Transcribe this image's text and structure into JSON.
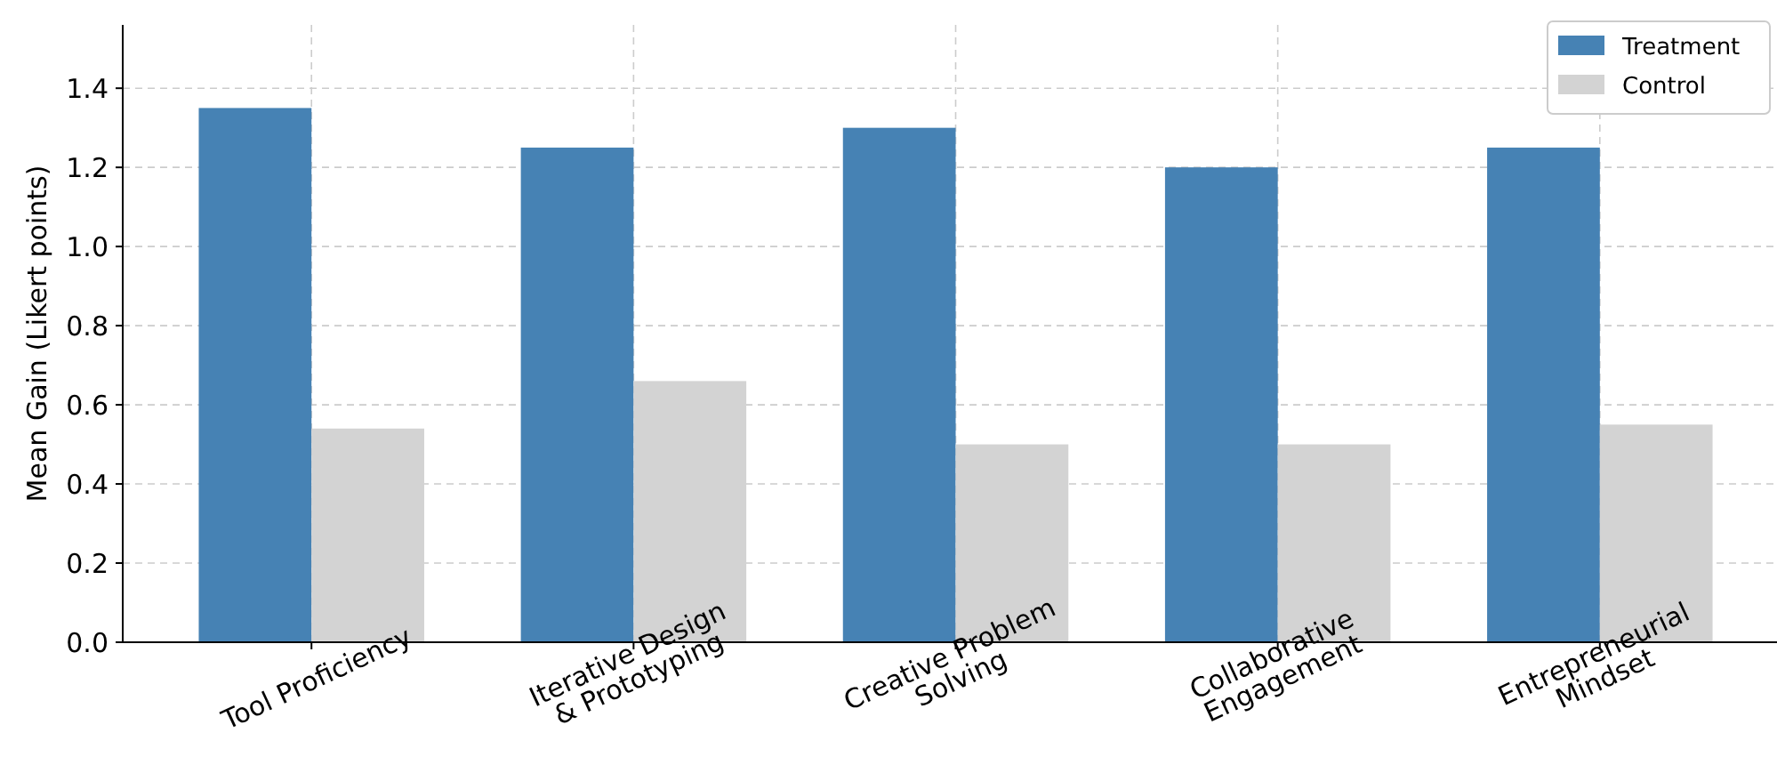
{
  "chart_data": {
    "type": "bar",
    "ylabel": "Mean Gain (Likert points)",
    "categories": [
      "Tool Proficiency",
      "Iterative Design\n& Prototyping",
      "Creative Problem\nSolving",
      "Collaborative\nEngagement",
      "Entrepreneurial\nMindset"
    ],
    "series": [
      {
        "name": "Treatment",
        "color": "#4682b4",
        "values": [
          1.35,
          1.25,
          1.3,
          1.2,
          1.25
        ]
      },
      {
        "name": "Control",
        "color": "#d3d3d3",
        "values": [
          0.54,
          0.66,
          0.5,
          0.5,
          0.55
        ]
      }
    ],
    "ylim": [
      0,
      1.56
    ],
    "yticks": [
      {
        "value": 0,
        "label": "0.0"
      },
      {
        "value": 0.2,
        "label": "0.2"
      },
      {
        "value": 0.4,
        "label": "0.4"
      },
      {
        "value": 0.6,
        "label": "0.6"
      },
      {
        "value": 0.8,
        "label": "0.8"
      },
      {
        "value": 1,
        "label": "1.0"
      },
      {
        "value": 1.2,
        "label": "1.2"
      },
      {
        "value": 1.4,
        "label": "1.4"
      }
    ],
    "grid": true,
    "legend": "top right"
  }
}
